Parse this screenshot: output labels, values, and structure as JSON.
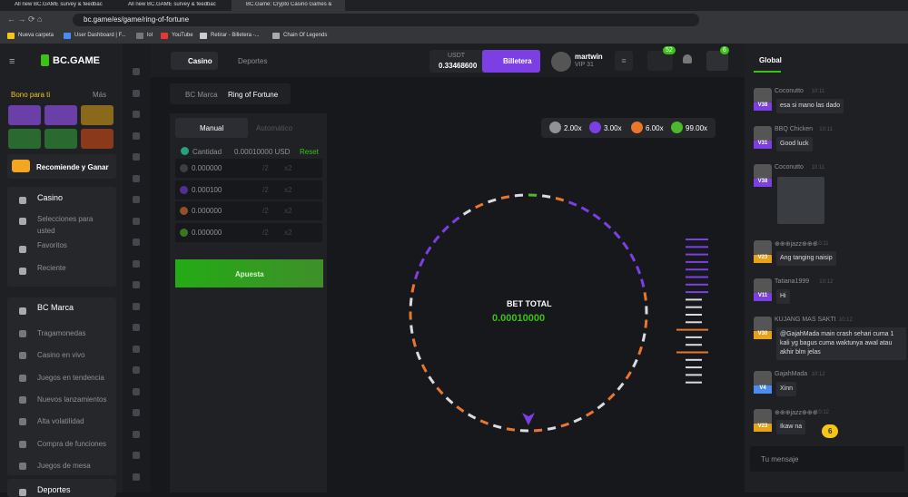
{
  "browser": {
    "tabs": [
      "All new BC.GAME survey & feedback",
      "All new BC.GAME survey & feedback",
      "BC.Game: Crypto Casino Games &"
    ],
    "url": "bc.game/es/game/ring-of-fortune",
    "bookmarks": [
      "Nueva carpeta",
      "User Dashboard | F...",
      "lol",
      "YouTube",
      "Retirar - Billetera -...",
      "Chain Of Legends"
    ]
  },
  "header": {
    "logo": "BC.GAME",
    "nav": [
      "Casino",
      "Deportes"
    ],
    "currency": "USDT",
    "balance": "0.33468600",
    "wallet": "Billetera",
    "user": "martwin",
    "vip": "VIP 31",
    "badges": [
      "52",
      "6"
    ]
  },
  "sidebar": {
    "bonus_title": "Bono para ti",
    "more": "Más",
    "refer": "Recomiende y Ganar",
    "casino": "Casino",
    "casino_items": [
      "Selecciones para usted",
      "Favoritos",
      "Reciente"
    ],
    "brand": "BC Marca",
    "items": [
      "Tragamonedas",
      "Casino en vivo",
      "Juegos en tendencia",
      "Nuevos lanzamientos",
      "Alta volatilidad",
      "Compra de funciones",
      "Juegos de mesa"
    ],
    "sports": "Deportes"
  },
  "breadcrumb": [
    "BC Marca",
    "Ring of Fortune"
  ],
  "controls": {
    "tabs": [
      "Manual",
      "Automático"
    ],
    "amount_label": "Cantidad",
    "amount": "0.00010000 USD",
    "reset": "Reset",
    "rows": [
      "0.000000",
      "0.000100",
      "0.000000",
      "0.000000"
    ],
    "half": "/2",
    "double": "x2",
    "bet": "Apuesta"
  },
  "multipliers": [
    "2.00x",
    "3.00x",
    "6.00x",
    "99.00x"
  ],
  "ring": {
    "label": "BET TOTAL",
    "amount": "0.00010000"
  },
  "chat": {
    "tab": "Global",
    "unread": "6",
    "placeholder": "Tu mensaje",
    "messages": [
      {
        "user": "Coconutto",
        "time": "10:11",
        "level": "V38",
        "text": "esa si mano las dado"
      },
      {
        "user": "BBQ Chicken",
        "time": "10:11",
        "level": "V31",
        "text": "Good luck"
      },
      {
        "user": "Coconutto",
        "time": "10:11",
        "level": "V38"
      },
      {
        "user": "⊕⊕⊕jazz⊕⊕⊕",
        "time": "10:11",
        "level": "V23",
        "text": "Ang tanging naisip"
      },
      {
        "user": "Tatiana1999",
        "time": "10:12",
        "level": "V11",
        "text": "Hi"
      },
      {
        "user": "KUJANG MAS SAKTI",
        "time": "10:12",
        "level": "V30",
        "text": "@GajahMada main crash sehari cuma 1 kali yg bagus cuma waktunya awal atau akhir blm jelas"
      },
      {
        "user": "GajahMada",
        "time": "10:12",
        "level": "V4",
        "text": "Xinn"
      },
      {
        "user": "⊕⊕⊕jazz⊕⊕⊕",
        "time": "10:12",
        "level": "V23",
        "text": "Ikaw na"
      }
    ]
  }
}
